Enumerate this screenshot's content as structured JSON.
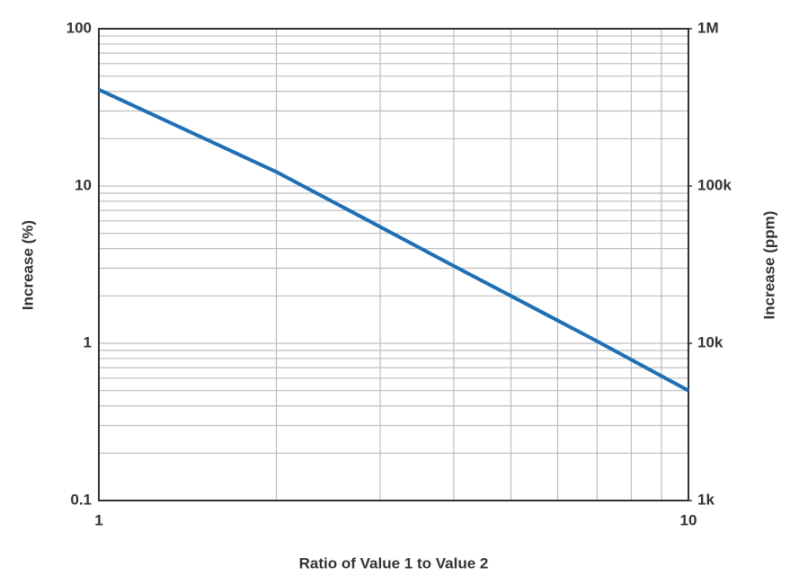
{
  "chart_data": {
    "type": "line",
    "x_label": "Ratio of Value 1 to Value 2",
    "y_label": "Increase (%)",
    "y2_label": "Increase (ppm)",
    "x": [
      1,
      2,
      3,
      4,
      5,
      7,
      10
    ],
    "series": [
      {
        "color": "#1f6fb4",
        "values": [
          41,
          12.3,
          5.5,
          3.1,
          2,
          1.03,
          0.5
        ]
      }
    ],
    "xlim": [
      1,
      10
    ],
    "xticks": [
      1,
      10
    ],
    "xscale": "log",
    "ylim": [
      0.1,
      100
    ],
    "yticks": [
      0.1,
      1,
      10,
      100
    ],
    "yscale": "log",
    "y2lim": [
      1000,
      1000000
    ],
    "y2ticks": [
      {
        "value": 1000,
        "label": "1k"
      },
      {
        "value": 10000,
        "label": "10k"
      },
      {
        "value": 100000,
        "label": "100k"
      },
      {
        "value": 1000000,
        "label": "1M"
      }
    ],
    "grid": true
  }
}
